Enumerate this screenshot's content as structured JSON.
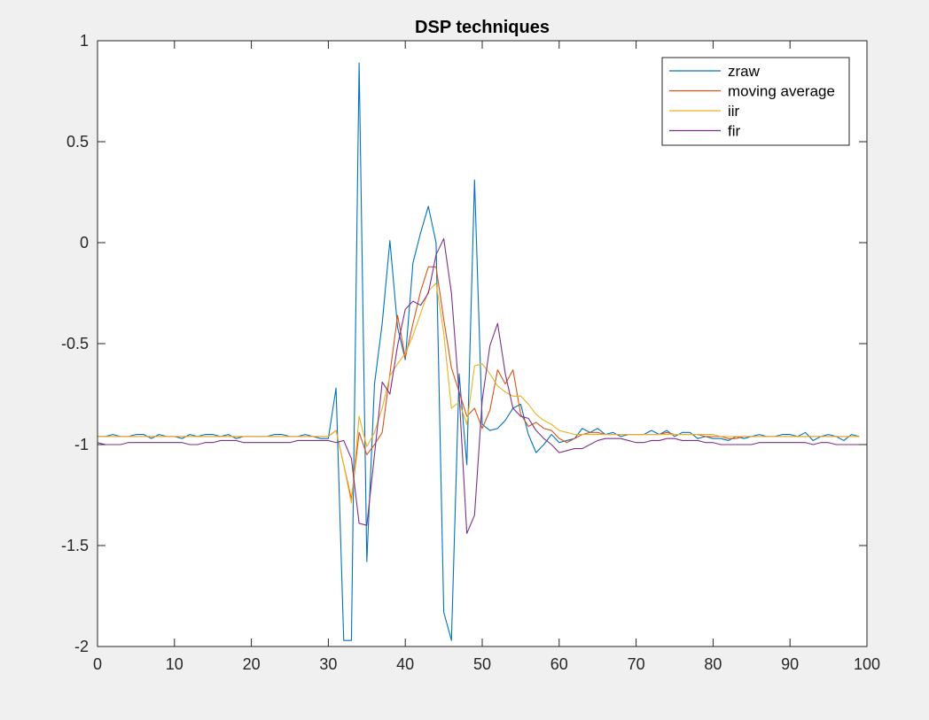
{
  "chart_data": {
    "type": "line",
    "title": "DSP techniques",
    "xlabel": "",
    "ylabel": "",
    "xlim": [
      0,
      100
    ],
    "ylim": [
      -2,
      1
    ],
    "xticks": [
      0,
      10,
      20,
      30,
      40,
      50,
      60,
      70,
      80,
      90,
      100
    ],
    "xtick_labels": [
      "0",
      "10",
      "20",
      "30",
      "40",
      "50",
      "60",
      "70",
      "80",
      "90",
      "100"
    ],
    "yticks": [
      -2,
      -1.5,
      -1,
      -0.5,
      0,
      0.5,
      1
    ],
    "ytick_labels": [
      "-2",
      "-1.5",
      "-1",
      "-0.5",
      "0",
      "0.5",
      "1"
    ],
    "grid": false,
    "legend_position": "top-right",
    "x": [
      0,
      1,
      2,
      3,
      4,
      5,
      6,
      7,
      8,
      9,
      10,
      11,
      12,
      13,
      14,
      15,
      16,
      17,
      18,
      19,
      20,
      21,
      22,
      23,
      24,
      25,
      26,
      27,
      28,
      29,
      30,
      31,
      32,
      33,
      34,
      35,
      36,
      37,
      38,
      39,
      40,
      41,
      42,
      43,
      44,
      45,
      46,
      47,
      48,
      49,
      50,
      51,
      52,
      53,
      54,
      55,
      56,
      57,
      58,
      59,
      60,
      61,
      62,
      63,
      64,
      65,
      66,
      67,
      68,
      69,
      70,
      71,
      72,
      73,
      74,
      75,
      76,
      77,
      78,
      79,
      80,
      81,
      82,
      83,
      84,
      85,
      86,
      87,
      88,
      89,
      90,
      91,
      92,
      93,
      94,
      95,
      96,
      97,
      98,
      99
    ],
    "series": [
      {
        "name": "zraw",
        "color": "#0072bd",
        "values": [
          -0.96,
          -0.96,
          -0.95,
          -0.96,
          -0.96,
          -0.95,
          -0.95,
          -0.97,
          -0.95,
          -0.96,
          -0.96,
          -0.97,
          -0.95,
          -0.96,
          -0.95,
          -0.95,
          -0.96,
          -0.95,
          -0.97,
          -0.96,
          -0.96,
          -0.96,
          -0.96,
          -0.95,
          -0.95,
          -0.96,
          -0.96,
          -0.95,
          -0.96,
          -0.97,
          -0.97,
          -0.72,
          -1.97,
          -1.97,
          0.89,
          -1.58,
          -0.7,
          -0.4,
          0.01,
          -0.42,
          -0.58,
          -0.1,
          0.05,
          0.18,
          0.0,
          -1.83,
          -1.97,
          -0.65,
          -1.1,
          0.31,
          -0.9,
          -0.93,
          -0.92,
          -0.88,
          -0.82,
          -0.8,
          -0.95,
          -1.04,
          -1.0,
          -0.95,
          -0.99,
          -0.98,
          -0.97,
          -0.92,
          -0.94,
          -0.92,
          -0.95,
          -0.94,
          -0.96,
          -0.95,
          -0.95,
          -0.95,
          -0.93,
          -0.95,
          -0.93,
          -0.96,
          -0.94,
          -0.94,
          -0.97,
          -0.96,
          -0.97,
          -0.97,
          -0.98,
          -0.96,
          -0.97,
          -0.96,
          -0.95,
          -0.96,
          -0.96,
          -0.95,
          -0.95,
          -0.96,
          -0.94,
          -0.98,
          -0.96,
          -0.95,
          -0.96,
          -0.98,
          -0.95,
          -0.96
        ]
      },
      {
        "name": "moving average",
        "color": "#d95319",
        "values": [
          -0.96,
          -0.96,
          -0.96,
          -0.96,
          -0.96,
          -0.96,
          -0.96,
          -0.96,
          -0.96,
          -0.96,
          -0.96,
          -0.96,
          -0.96,
          -0.96,
          -0.96,
          -0.96,
          -0.96,
          -0.96,
          -0.96,
          -0.96,
          -0.96,
          -0.96,
          -0.96,
          -0.96,
          -0.96,
          -0.96,
          -0.96,
          -0.96,
          -0.96,
          -0.96,
          -0.96,
          -0.93,
          -1.1,
          -1.27,
          -0.94,
          -1.05,
          -1.0,
          -0.94,
          -0.65,
          -0.36,
          -0.57,
          -0.4,
          -0.24,
          -0.12,
          -0.12,
          -0.38,
          -0.62,
          -0.74,
          -0.86,
          -0.82,
          -0.92,
          -0.83,
          -0.63,
          -0.7,
          -0.63,
          -0.85,
          -0.91,
          -0.89,
          -0.92,
          -0.93,
          -0.97,
          -0.99,
          -0.97,
          -0.95,
          -0.94,
          -0.94,
          -0.95,
          -0.95,
          -0.95,
          -0.95,
          -0.95,
          -0.95,
          -0.95,
          -0.95,
          -0.94,
          -0.95,
          -0.95,
          -0.95,
          -0.95,
          -0.96,
          -0.96,
          -0.96,
          -0.97,
          -0.97,
          -0.96,
          -0.96,
          -0.96,
          -0.96,
          -0.96,
          -0.96,
          -0.96,
          -0.96,
          -0.96,
          -0.96,
          -0.96,
          -0.96,
          -0.96,
          -0.96,
          -0.96,
          -0.96
        ]
      },
      {
        "name": "iir",
        "color": "#edb120",
        "values": [
          -0.96,
          -0.96,
          -0.96,
          -0.96,
          -0.96,
          -0.96,
          -0.96,
          -0.96,
          -0.96,
          -0.96,
          -0.96,
          -0.96,
          -0.96,
          -0.96,
          -0.96,
          -0.96,
          -0.96,
          -0.96,
          -0.96,
          -0.96,
          -0.96,
          -0.96,
          -0.96,
          -0.96,
          -0.96,
          -0.96,
          -0.96,
          -0.96,
          -0.96,
          -0.96,
          -0.96,
          -0.93,
          -1.1,
          -1.29,
          -0.86,
          -1.01,
          -0.94,
          -0.82,
          -0.66,
          -0.6,
          -0.55,
          -0.46,
          -0.35,
          -0.24,
          -0.2,
          -0.45,
          -0.82,
          -0.79,
          -0.9,
          -0.61,
          -0.6,
          -0.65,
          -0.71,
          -0.74,
          -0.76,
          -0.76,
          -0.8,
          -0.85,
          -0.88,
          -0.9,
          -0.93,
          -0.94,
          -0.95,
          -0.95,
          -0.95,
          -0.95,
          -0.95,
          -0.95,
          -0.95,
          -0.95,
          -0.95,
          -0.95,
          -0.95,
          -0.95,
          -0.95,
          -0.95,
          -0.95,
          -0.95,
          -0.95,
          -0.95,
          -0.95,
          -0.96,
          -0.96,
          -0.96,
          -0.96,
          -0.96,
          -0.96,
          -0.96,
          -0.96,
          -0.96,
          -0.96,
          -0.96,
          -0.96,
          -0.96,
          -0.96,
          -0.96,
          -0.96,
          -0.96,
          -0.96,
          -0.96
        ]
      },
      {
        "name": "fir",
        "color": "#7e2f8e",
        "values": [
          -0.99,
          -1.0,
          -1.0,
          -1.0,
          -0.99,
          -0.99,
          -0.99,
          -0.99,
          -0.99,
          -0.99,
          -0.99,
          -0.99,
          -1.0,
          -1.0,
          -0.99,
          -0.99,
          -0.98,
          -0.98,
          -0.98,
          -0.99,
          -0.99,
          -0.99,
          -0.99,
          -0.99,
          -0.99,
          -0.99,
          -0.98,
          -0.98,
          -0.98,
          -0.98,
          -0.98,
          -0.99,
          -0.98,
          -1.07,
          -1.39,
          -1.4,
          -1.05,
          -0.69,
          -0.75,
          -0.51,
          -0.33,
          -0.29,
          -0.31,
          -0.25,
          -0.06,
          0.02,
          -0.25,
          -0.75,
          -1.44,
          -1.35,
          -0.78,
          -0.51,
          -0.4,
          -0.65,
          -0.82,
          -0.86,
          -0.87,
          -0.93,
          -0.97,
          -1.0,
          -1.04,
          -1.03,
          -1.02,
          -1.02,
          -1.0,
          -0.98,
          -0.97,
          -0.97,
          -0.97,
          -0.98,
          -0.99,
          -0.99,
          -0.98,
          -0.98,
          -0.97,
          -0.97,
          -0.98,
          -0.98,
          -0.98,
          -0.99,
          -0.99,
          -1.0,
          -1.0,
          -1.0,
          -1.0,
          -1.0,
          -0.99,
          -0.99,
          -0.99,
          -0.99,
          -0.99,
          -0.99,
          -0.99,
          -1.0,
          -0.99,
          -0.99,
          -1.0,
          -1.0,
          -1.0,
          -1.0
        ]
      }
    ]
  }
}
